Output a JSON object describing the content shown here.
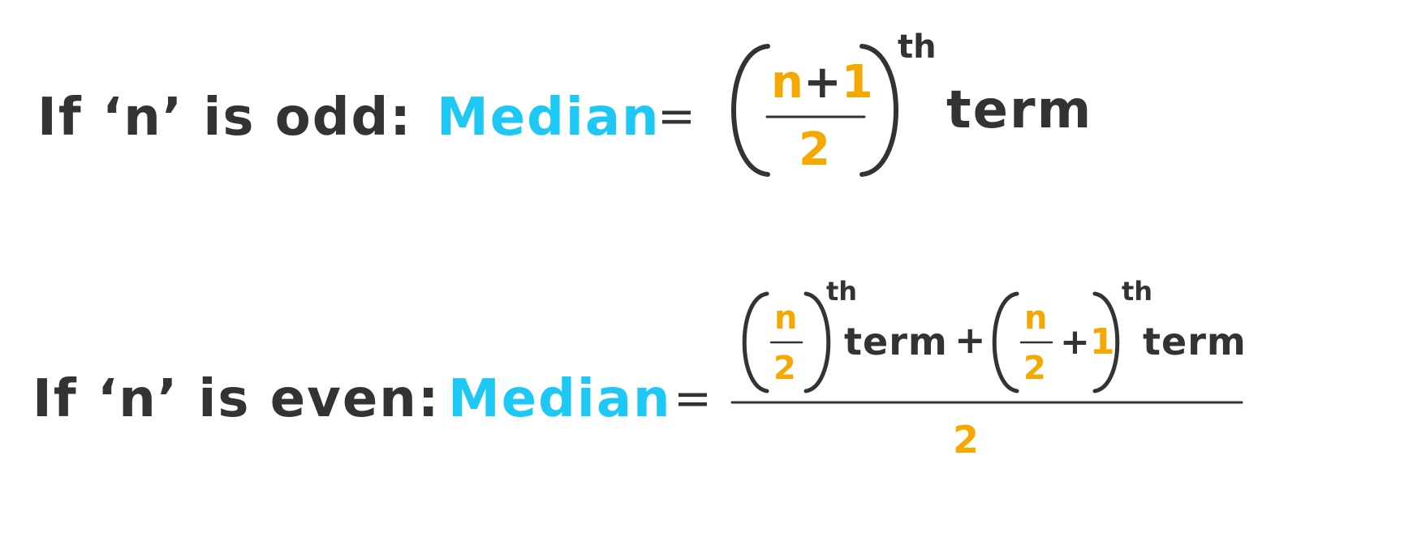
{
  "colors": {
    "text": "#333333",
    "accent_blue": "#1ec8f5",
    "accent_orange": "#f5a800"
  },
  "odd_case": {
    "label": "If ‘n’ is odd:",
    "median": "Median",
    "equals": "=",
    "numerator_n": "n",
    "numerator_plus": "+",
    "numerator_one": "1",
    "denominator": "2",
    "superscript": "th",
    "term": "term"
  },
  "even_case": {
    "label": "If ‘n’ is even:",
    "median": "Median",
    "equals": "=",
    "first_numerator": "n",
    "first_denominator": "2",
    "first_superscript": "th",
    "first_term": "term",
    "plus": "+",
    "second_numerator": "n",
    "second_denominator": "2",
    "second_plus": "+",
    "second_one": "1",
    "second_superscript": "th",
    "second_term": "term",
    "overall_denominator": "2"
  }
}
